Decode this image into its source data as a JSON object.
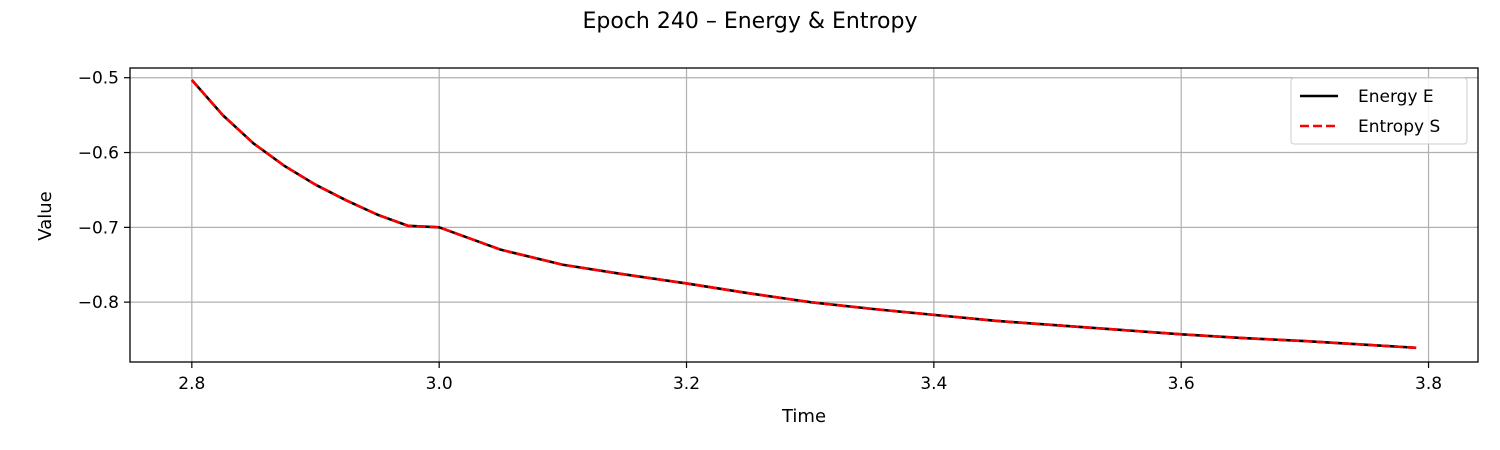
{
  "chart_data": {
    "type": "line",
    "title": "Epoch 240 – Energy & Entropy",
    "xlabel": "Time",
    "ylabel": "Value",
    "xlim": [
      2.75,
      3.84
    ],
    "ylim": [
      -0.88,
      -0.487
    ],
    "xticks": [
      2.8,
      3.0,
      3.2,
      3.4,
      3.6,
      3.8
    ],
    "xtick_labels": [
      "2.8",
      "3.0",
      "3.2",
      "3.4",
      "3.6",
      "3.8"
    ],
    "yticks": [
      -0.5,
      -0.6,
      -0.7,
      -0.8
    ],
    "ytick_labels": [
      "−0.5",
      "−0.6",
      "−0.7",
      "−0.8"
    ],
    "grid": true,
    "legend_position": "top-right",
    "x": [
      2.8,
      2.825,
      2.85,
      2.875,
      2.9,
      2.925,
      2.95,
      2.975,
      3.0,
      3.05,
      3.1,
      3.15,
      3.2,
      3.25,
      3.3,
      3.35,
      3.4,
      3.45,
      3.5,
      3.55,
      3.6,
      3.65,
      3.7,
      3.75,
      3.79
    ],
    "series": [
      {
        "name": "Energy E",
        "color": "#000000",
        "style": "solid",
        "values": [
          -0.503,
          -0.55,
          -0.588,
          -0.618,
          -0.643,
          -0.664,
          -0.683,
          -0.698,
          -0.7,
          -0.73,
          -0.75,
          -0.763,
          -0.775,
          -0.788,
          -0.8,
          -0.809,
          -0.817,
          -0.825,
          -0.831,
          -0.837,
          -0.843,
          -0.848,
          -0.852,
          -0.857,
          -0.861
        ]
      },
      {
        "name": "Entropy S",
        "color": "#ff0000",
        "style": "dashed",
        "values": [
          -0.503,
          -0.55,
          -0.588,
          -0.618,
          -0.643,
          -0.664,
          -0.683,
          -0.698,
          -0.7,
          -0.73,
          -0.75,
          -0.763,
          -0.775,
          -0.788,
          -0.8,
          -0.809,
          -0.817,
          -0.825,
          -0.831,
          -0.837,
          -0.843,
          -0.848,
          -0.852,
          -0.857,
          -0.861
        ]
      }
    ]
  }
}
